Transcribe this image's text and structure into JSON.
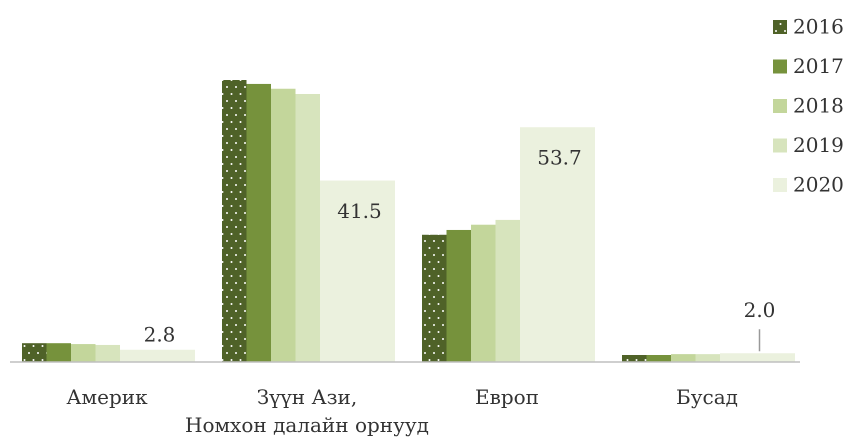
{
  "chart_data": {
    "type": "bar",
    "categories": [
      "Америк",
      "Зүүн Ази,\nНомхон далайн орнууд",
      "Европ",
      "Бусад"
    ],
    "series": [
      {
        "name": "2016",
        "color": "#4f6228",
        "values": [
          4.3,
          64.5,
          29.1,
          1.6
        ]
      },
      {
        "name": "2017",
        "color": "#76923c",
        "values": [
          4.3,
          63.6,
          30.2,
          1.6
        ]
      },
      {
        "name": "2018",
        "color": "#c3d69b",
        "values": [
          4.1,
          62.5,
          31.4,
          1.8
        ]
      },
      {
        "name": "2019",
        "color": "#d7e4bd",
        "values": [
          3.9,
          61.3,
          32.5,
          1.8
        ]
      },
      {
        "name": "2020",
        "color": "#ebf1de",
        "values": [
          2.8,
          41.5,
          53.7,
          2.0
        ],
        "value_labels": [
          "2.8",
          "41.5",
          "53.7",
          "2.0"
        ]
      }
    ],
    "legend": "right"
  }
}
